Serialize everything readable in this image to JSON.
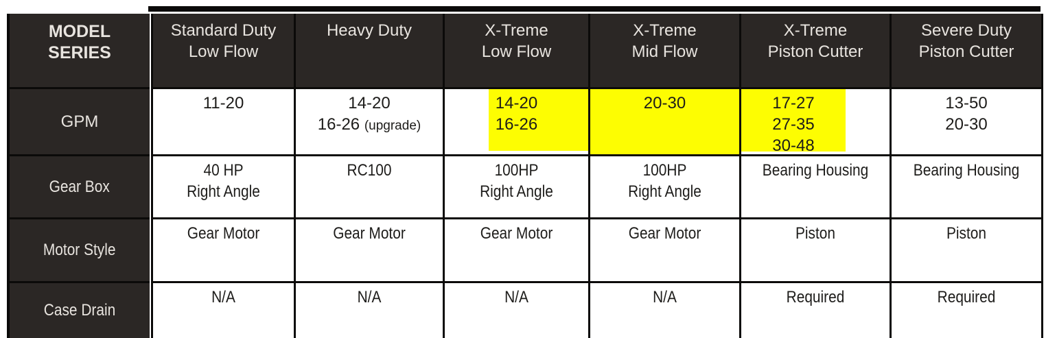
{
  "colors": {
    "header_bg": "#2b2725",
    "header_text": "#e8e4df",
    "cell_text": "#1d1c1a",
    "highlight": "#fdfd02",
    "border": "#0b0a09"
  },
  "header": {
    "corner": {
      "line1": "MODEL",
      "line2": "SERIES"
    },
    "columns": [
      {
        "line1": "Standard Duty",
        "line2": "Low Flow"
      },
      {
        "line1": "Heavy Duty",
        "line2": ""
      },
      {
        "line1": "X-Treme",
        "line2": "Low Flow"
      },
      {
        "line1": "X-Treme",
        "line2": "Mid Flow"
      },
      {
        "line1": "X-Treme",
        "line2": "Piston Cutter"
      },
      {
        "line1": "Severe Duty",
        "line2": "Piston Cutter"
      }
    ]
  },
  "rows": {
    "gpm": {
      "label": "GPM",
      "standard": {
        "l1": "11-20"
      },
      "heavy": {
        "l1": "14-20",
        "l2_main": "16-26",
        "l2_note": "(upgrade)"
      },
      "xtreme_low": {
        "l1": "14-20",
        "l2": "16-26",
        "highlighted": true
      },
      "xtreme_mid": {
        "l1": "20-30",
        "highlighted": true
      },
      "xtreme_piston": {
        "l1": "17-27",
        "l2": "27-35",
        "l3": "30-48",
        "highlighted": true
      },
      "severe": {
        "l1": "13-50",
        "l2": "20-30"
      }
    },
    "gearbox": {
      "label": "Gear Box",
      "cells": [
        {
          "l1": "40 HP",
          "l2": "Right Angle"
        },
        {
          "l1": "RC100"
        },
        {
          "l1": "100HP",
          "l2": "Right Angle"
        },
        {
          "l1": "100HP",
          "l2": "Right Angle"
        },
        {
          "l1": "Bearing Housing"
        },
        {
          "l1": "Bearing Housing"
        }
      ]
    },
    "motor": {
      "label": "Motor Style",
      "cells": [
        "Gear Motor",
        "Gear Motor",
        "Gear Motor",
        "Gear Motor",
        "Piston",
        "Piston"
      ]
    },
    "case_drain": {
      "label": "Case Drain",
      "cells": [
        "N/A",
        "N/A",
        "N/A",
        "N/A",
        "Required",
        "Required"
      ]
    }
  }
}
